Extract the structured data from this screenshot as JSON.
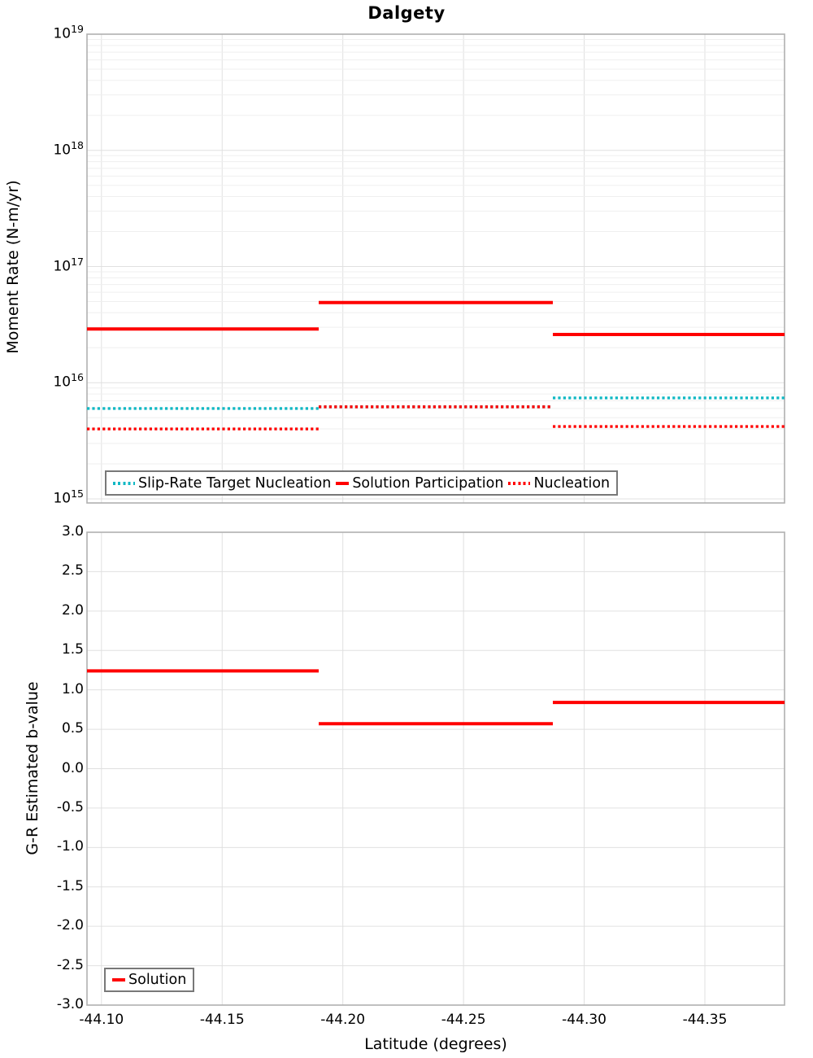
{
  "title": "Dalgety",
  "colors": {
    "red": "#ff0000",
    "cyan": "#10b8c4",
    "grid_major": "#e0e0e0",
    "grid_minor": "#efefef",
    "spine": "#b0b0b0",
    "legend_border": "#787878"
  },
  "chart_data": [
    {
      "id": "moment_rate_panel",
      "type": "line",
      "title": "Dalgety",
      "xlabel": "",
      "ylabel": "Moment Rate (N-m/yr)",
      "yscale": "log",
      "ylim": [
        1000000000000000.0,
        1e+19
      ],
      "xlim": [
        -44.094,
        -44.383
      ],
      "x_ticks": [
        "-44.10",
        "-44.15",
        "-44.20",
        "-44.25",
        "-44.30",
        "-44.35"
      ],
      "y_tick_exponents": [
        19,
        18,
        17,
        16,
        15
      ],
      "grid": "major+minor",
      "legend_position": "lower center",
      "series": [
        {
          "name": "Slip-Rate Target Nucleation",
          "style": "dotted",
          "color": "#10b8c4",
          "segments": [
            {
              "x": [
                -44.094,
                -44.19
              ],
              "y": 6000000000000000.0
            },
            {
              "x": [
                -44.19,
                -44.287
              ],
              "y": 6200000000000000.0
            },
            {
              "x": [
                -44.287,
                -44.383
              ],
              "y": 7400000000000000.0
            }
          ]
        },
        {
          "name": "Solution Participation",
          "style": "solid",
          "color": "#ff0000",
          "segments": [
            {
              "x": [
                -44.094,
                -44.19
              ],
              "y": 2.9e+16
            },
            {
              "x": [
                -44.19,
                -44.287
              ],
              "y": 4.9e+16
            },
            {
              "x": [
                -44.287,
                -44.383
              ],
              "y": 2.6e+16
            }
          ]
        },
        {
          "name": "Nucleation",
          "style": "dotted",
          "color": "#ff0000",
          "segments": [
            {
              "x": [
                -44.094,
                -44.19
              ],
              "y": 4000000000000000.0
            },
            {
              "x": [
                -44.19,
                -44.287
              ],
              "y": 6200000000000000.0
            },
            {
              "x": [
                -44.287,
                -44.383
              ],
              "y": 4200000000000000.0
            }
          ]
        }
      ]
    },
    {
      "id": "b_value_panel",
      "type": "line",
      "title": "",
      "xlabel": "Latitude (degrees)",
      "ylabel": "G-R Estimated b-value",
      "yscale": "linear",
      "ylim": [
        -3.0,
        3.0
      ],
      "xlim": [
        -44.094,
        -44.383
      ],
      "x_ticks": [
        "-44.10",
        "-44.15",
        "-44.20",
        "-44.25",
        "-44.30",
        "-44.35"
      ],
      "y_ticks": [
        "3.0",
        "2.5",
        "2.0",
        "1.5",
        "1.0",
        "0.5",
        "0.0",
        "-0.5",
        "-1.0",
        "-1.5",
        "-2.0",
        "-2.5",
        "-3.0"
      ],
      "grid": "major",
      "legend_position": "lower left",
      "series": [
        {
          "name": "Solution",
          "style": "solid",
          "color": "#ff0000",
          "segments": [
            {
              "x": [
                -44.094,
                -44.19
              ],
              "y": 1.24
            },
            {
              "x": [
                -44.19,
                -44.287
              ],
              "y": 0.57
            },
            {
              "x": [
                -44.287,
                -44.383
              ],
              "y": 0.84
            }
          ]
        }
      ]
    }
  ]
}
